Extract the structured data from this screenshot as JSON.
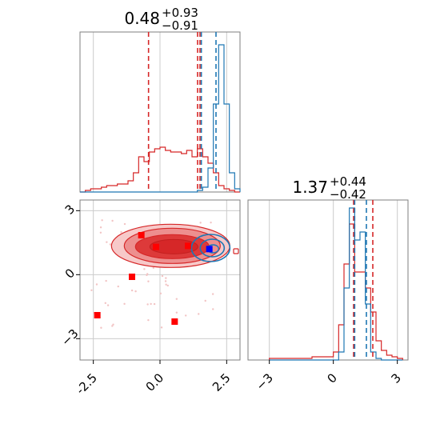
{
  "chart_data": [
    {
      "type": "histogram",
      "panel": "top-left marginal",
      "title_value": "0.48",
      "title_upper": "+0.93",
      "title_lower": "−0.91",
      "xlim": [
        -3.0,
        3.0
      ],
      "grid": true,
      "colors": {
        "red": "#d62728",
        "blue": "#1f77b4"
      },
      "bins_x": [
        -3.0,
        -2.8,
        -2.6,
        -2.4,
        -2.2,
        -2.0,
        -1.8,
        -1.6,
        -1.4,
        -1.2,
        -1.0,
        -0.8,
        -0.6,
        -0.4,
        -0.2,
        0.0,
        0.2,
        0.4,
        0.6,
        0.8,
        1.0,
        1.2,
        1.4,
        1.6,
        1.8,
        2.0,
        2.2,
        2.4,
        2.6,
        2.8,
        3.0
      ],
      "series": [
        {
          "name": "",
          "color": "#d62728",
          "counts": [
            0,
            0.01,
            0.02,
            0.02,
            0.03,
            0.04,
            0.04,
            0.05,
            0.05,
            0.07,
            0.12,
            0.22,
            0.19,
            0.25,
            0.27,
            0.28,
            0.26,
            0.25,
            0.25,
            0.24,
            0.26,
            0.22,
            0.27,
            0.22,
            0.18,
            0.12,
            0.04,
            0.02,
            0.01,
            0
          ]
        },
        {
          "name": "",
          "color": "#1f77b4",
          "counts": [
            0,
            0,
            0,
            0,
            0,
            0,
            0,
            0,
            0,
            0,
            0,
            0,
            0,
            0,
            0,
            0,
            0,
            0,
            0,
            0,
            0,
            0,
            0.01,
            0.03,
            0.15,
            0.55,
            0.92,
            0.55,
            0.12,
            0.02
          ]
        }
      ],
      "quantile_lines": [
        {
          "x": -0.43,
          "color": "#d62728"
        },
        {
          "x": 1.41,
          "color": "#d62728"
        },
        {
          "x": 1.5,
          "color": "#d62728"
        },
        {
          "x": 1.55,
          "color": "#1f77b4"
        },
        {
          "x": 2.1,
          "color": "#1f77b4"
        }
      ]
    },
    {
      "type": "scatter",
      "panel": "bottom-left 2D density",
      "xlim": [
        -3.0,
        3.0
      ],
      "ylim": [
        -4.0,
        3.5
      ],
      "x_ticks": [
        "-2.5",
        "0.0",
        "2.5"
      ],
      "x_tick_values": [
        -2.5,
        0.0,
        2.5
      ],
      "y_ticks": [
        "3",
        "0",
        "−3"
      ],
      "y_tick_values": [
        3,
        0,
        -3
      ],
      "grid": true,
      "red_points": [
        {
          "x": -0.7,
          "y": 1.85
        },
        {
          "x": -0.15,
          "y": 1.3
        },
        {
          "x": 1.05,
          "y": 1.35
        },
        {
          "x": -1.05,
          "y": -0.1
        },
        {
          "x": -2.35,
          "y": -1.9
        },
        {
          "x": 0.55,
          "y": -2.2
        }
      ],
      "blue_points": [
        {
          "x": 1.85,
          "y": 1.2
        }
      ],
      "red_contours_center": {
        "x": 0.4,
        "y": 1.35
      },
      "blue_contours_center": {
        "x": 1.9,
        "y": 1.25
      }
    },
    {
      "type": "histogram",
      "panel": "bottom-right marginal",
      "title_value": "1.37",
      "title_upper": "+0.44",
      "title_lower": "−0.42",
      "xlim": [
        -4.0,
        3.5
      ],
      "x_ticks": [
        "−3",
        "0",
        "3"
      ],
      "x_tick_values": [
        -3,
        0,
        3
      ],
      "grid": true,
      "bins_x": [
        -3.0,
        -2.5,
        -2.0,
        -1.5,
        -1.0,
        -0.5,
        0.0,
        0.25,
        0.5,
        0.75,
        1.0,
        1.25,
        1.5,
        1.75,
        2.0,
        2.25,
        2.5,
        2.75,
        3.0,
        3.25
      ],
      "series": [
        {
          "name": "",
          "color": "#d62728",
          "counts": [
            0.01,
            0.01,
            0.01,
            0.01,
            0.02,
            0.02,
            0.05,
            0.22,
            0.6,
            0.85,
            0.55,
            0.55,
            0.45,
            0.3,
            0.12,
            0.06,
            0.03,
            0.02,
            0.01
          ]
        },
        {
          "name": "",
          "color": "#1f77b4",
          "counts": [
            0,
            0,
            0,
            0,
            0,
            0,
            0,
            0.05,
            0.45,
            0.95,
            0.75,
            0.8,
            0.35,
            0.05,
            0.01,
            0,
            0,
            0,
            0
          ]
        }
      ],
      "quantile_lines": [
        {
          "x": 0.95,
          "color": "#d62728"
        },
        {
          "x": 1.0,
          "color": "#1f77b4"
        },
        {
          "x": 1.55,
          "color": "#1f77b4"
        },
        {
          "x": 1.85,
          "color": "#d62728"
        }
      ]
    }
  ]
}
